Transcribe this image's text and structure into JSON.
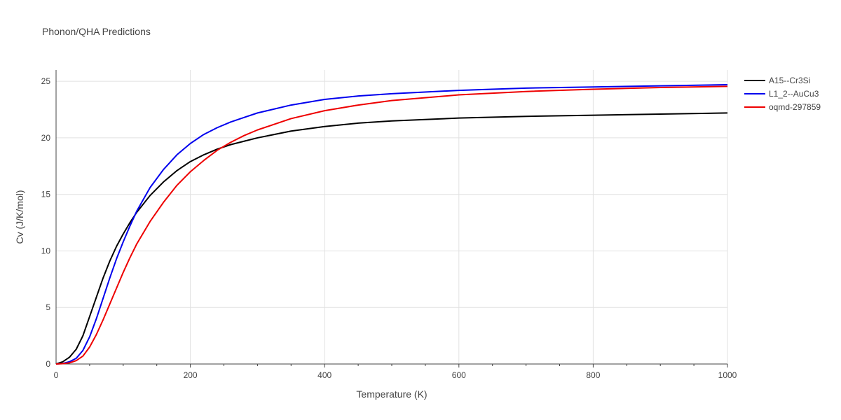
{
  "chart_data": {
    "type": "line",
    "title": "Phonon/QHA Predictions",
    "xlabel": "Temperature (K)",
    "ylabel": "Cv (J/K/mol)",
    "xlim": [
      0,
      1000
    ],
    "ylim": [
      0,
      26
    ],
    "x_ticks": [
      0,
      200,
      400,
      600,
      800,
      1000
    ],
    "y_ticks": [
      0,
      5,
      10,
      15,
      20,
      25
    ],
    "grid": true,
    "legend_position": "top-right",
    "series": [
      {
        "name": "A15--Cr3Si",
        "color": "#000000",
        "x": [
          0,
          10,
          20,
          30,
          40,
          50,
          60,
          70,
          80,
          90,
          100,
          110,
          120,
          140,
          160,
          180,
          200,
          220,
          240,
          260,
          280,
          300,
          350,
          400,
          450,
          500,
          600,
          700,
          800,
          900,
          1000
        ],
        "y": [
          0,
          0.2,
          0.6,
          1.3,
          2.5,
          4.2,
          5.9,
          7.6,
          9.1,
          10.4,
          11.5,
          12.5,
          13.4,
          14.9,
          16.1,
          17.1,
          17.9,
          18.5,
          19.0,
          19.4,
          19.7,
          20.0,
          20.6,
          21.0,
          21.3,
          21.5,
          21.75,
          21.9,
          22.0,
          22.1,
          22.2
        ]
      },
      {
        "name": "L1_2--AuCu3",
        "color": "#0000ee",
        "x": [
          0,
          10,
          20,
          30,
          40,
          50,
          60,
          70,
          80,
          90,
          100,
          110,
          120,
          140,
          160,
          180,
          200,
          220,
          240,
          260,
          280,
          300,
          350,
          400,
          450,
          500,
          600,
          700,
          800,
          900,
          1000
        ],
        "y": [
          0,
          0.05,
          0.2,
          0.5,
          1.2,
          2.4,
          4.0,
          5.8,
          7.6,
          9.3,
          10.8,
          12.2,
          13.5,
          15.6,
          17.2,
          18.5,
          19.5,
          20.3,
          20.9,
          21.4,
          21.8,
          22.2,
          22.9,
          23.4,
          23.7,
          23.9,
          24.2,
          24.4,
          24.5,
          24.6,
          24.7
        ]
      },
      {
        "name": "oqmd-297859",
        "color": "#ee0000",
        "x": [
          0,
          10,
          20,
          30,
          40,
          50,
          60,
          70,
          80,
          90,
          100,
          110,
          120,
          140,
          160,
          180,
          200,
          220,
          240,
          260,
          280,
          300,
          350,
          400,
          450,
          500,
          600,
          700,
          800,
          900,
          1000
        ],
        "y": [
          0,
          0.03,
          0.1,
          0.3,
          0.7,
          1.5,
          2.6,
          3.9,
          5.3,
          6.7,
          8.1,
          9.4,
          10.6,
          12.6,
          14.3,
          15.8,
          17.0,
          18.0,
          18.9,
          19.6,
          20.2,
          20.7,
          21.7,
          22.4,
          22.9,
          23.3,
          23.8,
          24.1,
          24.3,
          24.45,
          24.55
        ]
      }
    ]
  }
}
